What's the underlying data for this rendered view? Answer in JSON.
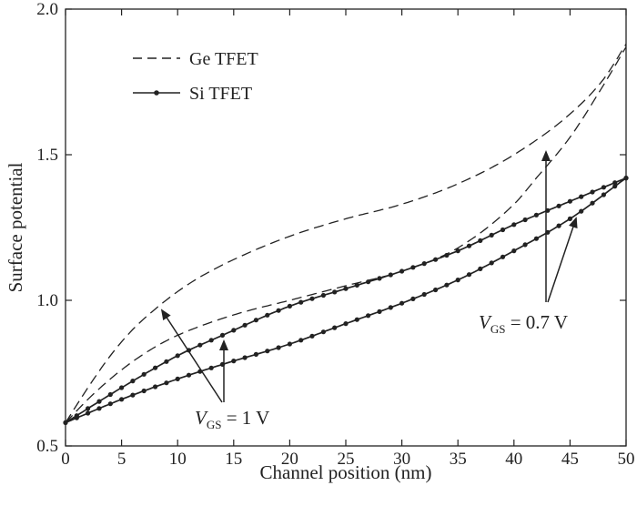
{
  "chart_data": {
    "type": "line",
    "xlabel": "Channel position (nm)",
    "ylabel": "Surface potential",
    "xlim": [
      0,
      50
    ],
    "ylim": [
      0.5,
      2.0
    ],
    "x_ticks": [
      0,
      5,
      10,
      15,
      20,
      25,
      30,
      35,
      40,
      45,
      50
    ],
    "y_ticks": [
      0.5,
      1.0,
      1.5,
      2.0
    ],
    "x_tick_labels": [
      "0",
      "5",
      "10",
      "15",
      "20",
      "25",
      "30",
      "35",
      "40",
      "45",
      "50"
    ],
    "y_tick_labels": [
      "0.5",
      "1.0",
      "1.5",
      "2.0"
    ],
    "grid": false,
    "legend_position": "top-left",
    "legend": [
      {
        "label": "Ge TFET",
        "style": "dashed"
      },
      {
        "label": "Si TFET",
        "style": "solid-marker"
      }
    ],
    "series": [
      {
        "group": "Ge TFET",
        "vgs": "1 V",
        "style": "dashed",
        "x": [
          0,
          2,
          4,
          6,
          8,
          10,
          12,
          15,
          20,
          25,
          30,
          35,
          40,
          45,
          48,
          50
        ],
        "y": [
          0.58,
          0.7,
          0.81,
          0.9,
          0.97,
          1.03,
          1.08,
          1.14,
          1.22,
          1.28,
          1.33,
          1.4,
          1.5,
          1.64,
          1.76,
          1.88
        ]
      },
      {
        "group": "Ge TFET",
        "vgs": "0.7 V",
        "style": "dashed",
        "x": [
          0,
          2,
          4,
          6,
          8,
          10,
          15,
          20,
          25,
          30,
          35,
          40,
          42,
          45,
          48,
          50
        ],
        "y": [
          0.58,
          0.66,
          0.73,
          0.79,
          0.84,
          0.88,
          0.95,
          1.0,
          1.05,
          1.1,
          1.18,
          1.33,
          1.42,
          1.56,
          1.74,
          1.87
        ]
      },
      {
        "group": "Si TFET",
        "vgs": "1 V",
        "style": "solid-marker",
        "x": [
          0,
          5,
          10,
          14,
          20,
          25,
          30,
          35,
          40,
          45,
          50
        ],
        "y": [
          0.58,
          0.7,
          0.81,
          0.88,
          0.98,
          1.04,
          1.1,
          1.17,
          1.26,
          1.34,
          1.42
        ]
      },
      {
        "group": "Si TFET",
        "vgs": "0.7 V",
        "style": "solid-marker",
        "x": [
          0,
          5,
          10,
          14,
          20,
          25,
          30,
          35,
          40,
          45,
          50
        ],
        "y": [
          0.58,
          0.66,
          0.73,
          0.78,
          0.85,
          0.92,
          0.99,
          1.07,
          1.17,
          1.28,
          1.42
        ]
      }
    ],
    "annotations": [
      {
        "var": "V",
        "sub": "GS",
        "rest": " = 1 V"
      },
      {
        "var": "V",
        "sub": "GS",
        "rest": " = 0.7 V"
      }
    ]
  }
}
